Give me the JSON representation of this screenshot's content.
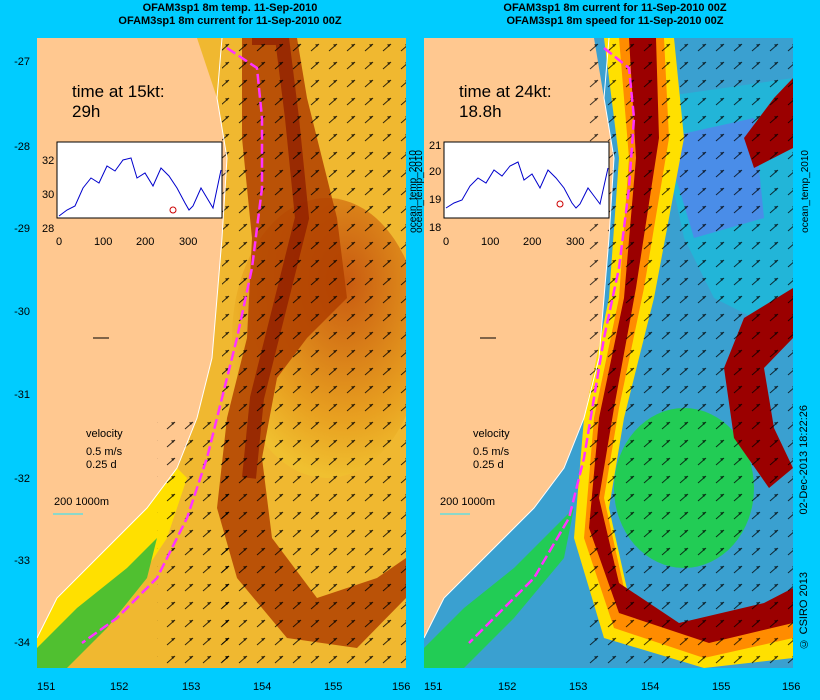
{
  "left_panel": {
    "title_line1": "OFAM3sp1 8m temp. 11-Sep-2010",
    "title_line2": "OFAM3sp1 8m current for 11-Sep-2010 00Z",
    "time_label": "time at 15kt:",
    "time_value": "29h",
    "inset": {
      "y_ticks": [
        "32",
        "30",
        "28"
      ],
      "x_ticks": [
        "0",
        "100",
        "200",
        "300"
      ]
    },
    "side_label": "ocean_temp_2010",
    "colors": {
      "land": "#ffc890",
      "warm": "#8b1a00",
      "hot": "#c85000",
      "orange": "#e89000",
      "yellow": "#ffe000",
      "green": "#50c030",
      "line": "#0000cc",
      "route": "#ff33ff"
    }
  },
  "right_panel": {
    "title_line1": "OFAM3sp1 8m current for 11-Sep-2010 00Z",
    "title_line2": "OFAM3sp1 8m speed for 11-Sep-2010 00Z",
    "time_label": "time at 24kt:",
    "time_value": "18.8h",
    "inset": {
      "y_ticks": [
        "21",
        "20",
        "19",
        "18"
      ],
      "x_ticks": [
        "0",
        "100",
        "200",
        "300"
      ]
    },
    "side_label": "ocean_temp_2010",
    "colors": {
      "core": "#9b0000",
      "orange": "#ff8c00",
      "yellow": "#ffe000",
      "green": "#22cc55",
      "cyan": "#22b5d8",
      "blue": "#4a8de8"
    }
  },
  "legend": {
    "velocity_label": "velocity",
    "speed_label": "0.5 m/s",
    "duration_label": "0.25 d",
    "isobath_label": "200  1000m"
  },
  "axes": {
    "lat_ticks": [
      "-27",
      "-28",
      "-29",
      "-30",
      "-31",
      "-32",
      "-33",
      "-34"
    ],
    "lon_ticks": [
      "151",
      "152",
      "153",
      "154",
      "155",
      "156"
    ]
  },
  "footer": {
    "timestamp": "02-Dec-2013 18:22:26",
    "copyright": "© CSIRO 2013"
  }
}
